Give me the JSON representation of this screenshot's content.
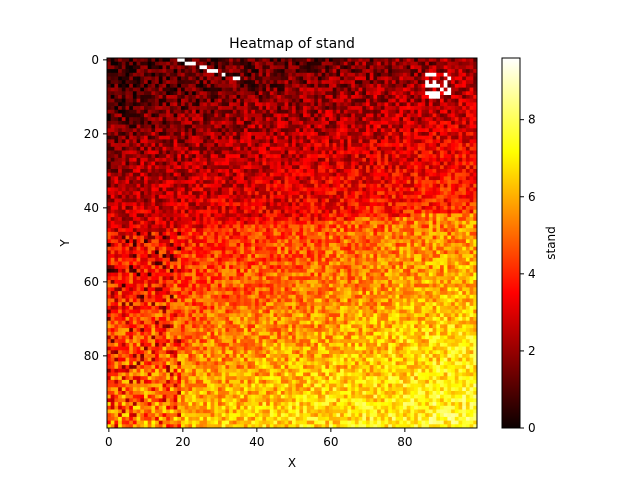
{
  "chart_data": {
    "type": "heatmap",
    "title": "Heatmap of stand",
    "xlabel": "X",
    "ylabel": "Y",
    "colorbar_label": "stand",
    "colormap": "hot",
    "grid_size": [
      100,
      100
    ],
    "xlim": [
      0,
      99
    ],
    "ylim": [
      99,
      0
    ],
    "value_range": [
      0,
      9.6
    ],
    "x_ticks": [
      "0",
      "20",
      "40",
      "60",
      "80"
    ],
    "x_tick_values": [
      0,
      20,
      40,
      60,
      80
    ],
    "y_ticks": [
      "0",
      "20",
      "40",
      "60",
      "80"
    ],
    "y_tick_values": [
      0,
      20,
      40,
      60,
      80
    ],
    "colorbar_ticks": [
      "0",
      "2",
      "4",
      "6",
      "8"
    ],
    "colorbar_tick_values": [
      0,
      2,
      4,
      6,
      8
    ],
    "trend": "low values (dark red/black) in upper rows 0-45, high values (orange/yellow) in lower rows 45-99, brightest toward lower-right; white spots near x=88-92, y=5-10 and along a diagonal near top around x=18-35"
  }
}
